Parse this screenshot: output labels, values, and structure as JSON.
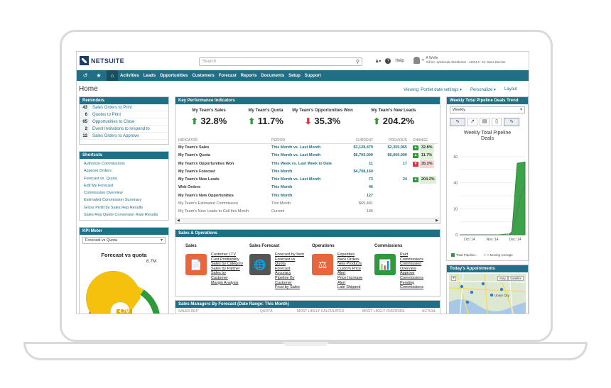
{
  "app": {
    "logo_text": "NETSUITE"
  },
  "search": {
    "placeholder": "Search"
  },
  "top": {
    "help": "Help",
    "user_name": "A Wolfe",
    "user_role": "Gill Inc. Wholesale Distribution - v2014.2 - 11: Sales Director"
  },
  "nav": {
    "items": [
      "Activities",
      "Leads",
      "Opportunities",
      "Customers",
      "Forecast",
      "Reports",
      "Documents",
      "Setup",
      "Support"
    ]
  },
  "home": {
    "title": "Home",
    "viewing": "Viewing: Portlet date settings",
    "personalize": "Personalize",
    "layout": "Layout"
  },
  "reminders": {
    "title": "Reminders",
    "items": [
      {
        "count": "43",
        "label": "Sales Orders to Print"
      },
      {
        "count": "6",
        "label": "Quotes to Print"
      },
      {
        "count": "65",
        "label": "Opportunities to Close"
      },
      {
        "count": "2",
        "label": "Event Invitations to respond to"
      },
      {
        "count": "12",
        "label": "Sales Orders to Approve"
      }
    ]
  },
  "shortcuts": {
    "title": "Shortcuts",
    "items": [
      "Authorize Commissions",
      "Approve Orders",
      "Forecast vs. Quota",
      "Edit My Forecast",
      "Commission Overview",
      "Estimated Commission Summary",
      "Gross Profit by Sales Rep Results",
      "Sales Rep Quote Conversion Rate Results"
    ]
  },
  "kpi_meter": {
    "title": "KPI Meter",
    "selected": "Forecast vs Quota",
    "chart_title": "Forecast vs quota",
    "target": "6.7M",
    "value": "4.7M",
    "target_fraction": 1.0,
    "value_fraction": 0.7
  },
  "kpi": {
    "title": "Key Performance Indicators",
    "big": [
      {
        "label": "My Team's Sales",
        "value": "32.8%",
        "dir": "up"
      },
      {
        "label": "My Team's Quota",
        "value": "11.7%",
        "dir": "up"
      },
      {
        "label": "My Team's Opportunities Won",
        "value": "35.3%",
        "dir": "down"
      },
      {
        "label": "My Team's New Leads",
        "value": "204.2%",
        "dir": "up"
      }
    ],
    "headers": [
      "INDICATOR",
      "PERIOD",
      "CURRENT",
      "PREVIOUS",
      "CHANGE"
    ],
    "rows": [
      {
        "indicator": "My Team's Sales",
        "period": "This Month vs. Last Month",
        "current": "$3,128,479",
        "previous": "$2,355,965",
        "change": "32.8%",
        "dir": "up",
        "bold": true
      },
      {
        "indicator": "My Team's Quota",
        "period": "This Month vs. Last Month",
        "current": "$6,700,000",
        "previous": "$6,000,000",
        "change": "11.7%",
        "dir": "up",
        "bold": true
      },
      {
        "indicator": "My Team's Opportunities Won",
        "period": "This Week vs. Last Week to Date",
        "current": "11",
        "previous": "17",
        "change": "35.3%",
        "dir": "down",
        "bold": true
      },
      {
        "indicator": "My Team's Forecast",
        "period": "This Month",
        "current": "$4,708,160",
        "previous": "",
        "change": "",
        "dir": "",
        "bold": true
      },
      {
        "indicator": "My Team's New Leads",
        "period": "This Month vs. Last Month",
        "current": "73",
        "previous": "24",
        "change": "204.2%",
        "dir": "up",
        "bold": true
      },
      {
        "indicator": "Web Orders",
        "period": "This Month",
        "current": "46",
        "previous": "",
        "change": "",
        "dir": "",
        "bold": true
      },
      {
        "indicator": "My Team's New Opportunities",
        "period": "This Month",
        "current": "127",
        "previous": "",
        "change": "",
        "dir": "",
        "bold": true
      },
      {
        "indicator": "My Team's Estimated Commission",
        "period": "This Month",
        "current": "$65,491",
        "previous": "",
        "change": "",
        "dir": "",
        "bold": false
      },
      {
        "indicator": "My Team's New Leads to Call this Month",
        "period": "Current",
        "current": "165",
        "previous": "",
        "change": "",
        "dir": "",
        "bold": false
      }
    ]
  },
  "sales_ops": {
    "title": "Sales & Operations",
    "columns": [
      {
        "title": "Sales",
        "links": [
          "Customer LTV",
          "Cust Profitability",
          "Sales by Category",
          "Sales by Partner",
          "Sales by",
          "Customer",
          "Margin Analysis"
        ],
        "color": "#e8663d"
      },
      {
        "title": "Sales Forecast",
        "links": [
          "Forecast by Item",
          "Forecast vs",
          "Quota",
          "Forecast",
          "Accuracy",
          "Pipeline By",
          "Customer",
          "Frcst by Sales"
        ],
        "color": "#555555"
      },
      {
        "title": "Operations",
        "links": [
          "Expedites",
          "Back Orders",
          "New Products",
          "Custom Price",
          "Alert",
          "Price Increase",
          "Alert",
          "Late Shipped"
        ],
        "color": "#e8663d"
      },
      {
        "title": "Commissions",
        "links": [
          "Paid",
          "Commissions",
          "Commission",
          "Overview",
          "Approve",
          "Commissions",
          "Pending",
          "Commissions"
        ],
        "color": "#2e9a3a"
      }
    ]
  },
  "managers": {
    "title": "Sales Managers By Forecast (Date Range: This Month)",
    "headers": [
      "SALES REP",
      "QUOTA",
      "MOST LIKELY CALCULATED",
      "MOST LIKELY OVERRIDE",
      "ACTUAL"
    ]
  },
  "pipeline": {
    "title": "Weekly Total Pipeline Deals Trend",
    "selected": "Weekly",
    "chart_title_1": "Weekly Total Pipeline",
    "chart_title_2": "Deals",
    "legend_total": "Total Pipeline...",
    "legend_avg": "Moving Average"
  },
  "appointments": {
    "title": "Today's Appointments",
    "map_label": "Map",
    "satellite_label": "Satellite",
    "city_label": "Union City"
  },
  "colors": {
    "nav": "#1f6f86",
    "up": "#2e9a3a",
    "down": "#d9363e",
    "link": "#1f6f86"
  },
  "chart_data": {
    "type": "area",
    "x": [
      "Oct '14",
      "Nov '14",
      "Dec '14"
    ],
    "ylim": [
      0,
      60
    ],
    "yticks": [
      0,
      10,
      20,
      30,
      40,
      50,
      60
    ],
    "series": [
      {
        "name": "Total Pipeline...",
        "points": [
          [
            0,
            0
          ],
          [
            0.2,
            0
          ],
          [
            0.4,
            0
          ],
          [
            0.6,
            0
          ],
          [
            0.75,
            0
          ],
          [
            0.8,
            2
          ],
          [
            0.88,
            55
          ],
          [
            1.0,
            56
          ]
        ]
      },
      {
        "name": "Moving Average",
        "points": [
          [
            0,
            0
          ],
          [
            0.6,
            0
          ],
          [
            0.78,
            1
          ],
          [
            0.86,
            12
          ],
          [
            0.92,
            28
          ],
          [
            1.0,
            38
          ]
        ]
      }
    ]
  }
}
